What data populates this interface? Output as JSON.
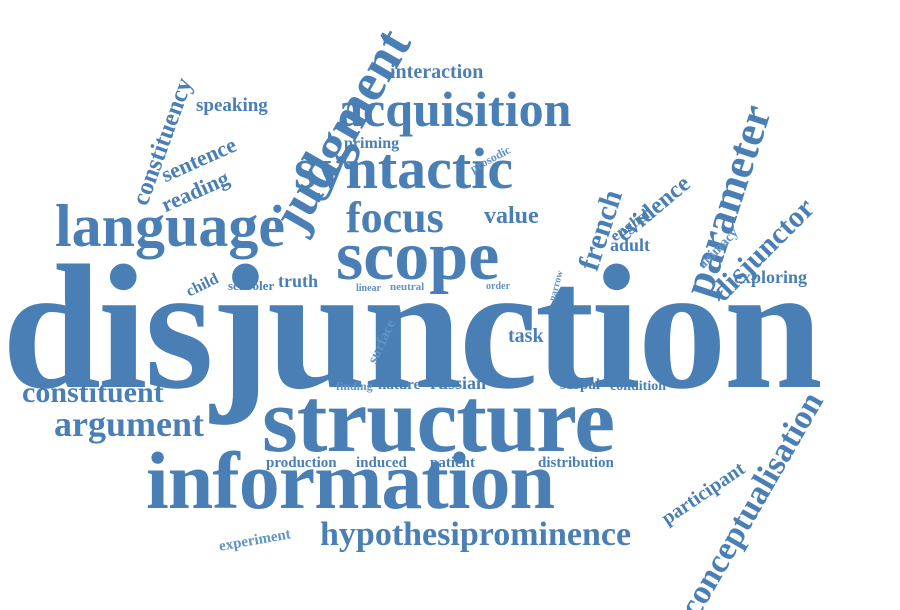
{
  "words": {
    "disjunction": "disjunction",
    "structure": "structure",
    "information": "information",
    "scope": "scope",
    "language": "language",
    "syntactic": "syntactic",
    "acquisition": "acquisition",
    "focus": "focus",
    "judgment": "judgment",
    "parameter": "parameter",
    "hypothesiprominence": "hypothesiprominence",
    "conceptualisation": "conceptualisation",
    "argument": "argument",
    "constituent": "constituent",
    "constituency": "constituency",
    "french": "french",
    "disjunctor": "disjunctor",
    "evidence": "evidence",
    "interaction": "interaction",
    "sentence": "sentence",
    "reading": "reading",
    "speaking": "speaking",
    "value": "value",
    "priming": "priming",
    "prosodic": "prosodic",
    "english": "english",
    "adult": "adult",
    "animacy": "animacy",
    "exploring": "exploring",
    "child": "child",
    "schooler": "schooler",
    "truth": "truth",
    "linear": "linear",
    "neutral": "neutral",
    "order": "order",
    "narrow": "narrow",
    "task": "task",
    "surface": "surface",
    "finding": "finding",
    "nature": "nature",
    "russian": "russian",
    "scopal": "scopal",
    "condition": "condition",
    "production": "production",
    "induced": "induced",
    "patient": "patient",
    "distribution": "distribution",
    "participant": "participant",
    "experiment": "experiment"
  },
  "colors": {
    "word": "#4a7fb5",
    "background": "#ffffff"
  }
}
